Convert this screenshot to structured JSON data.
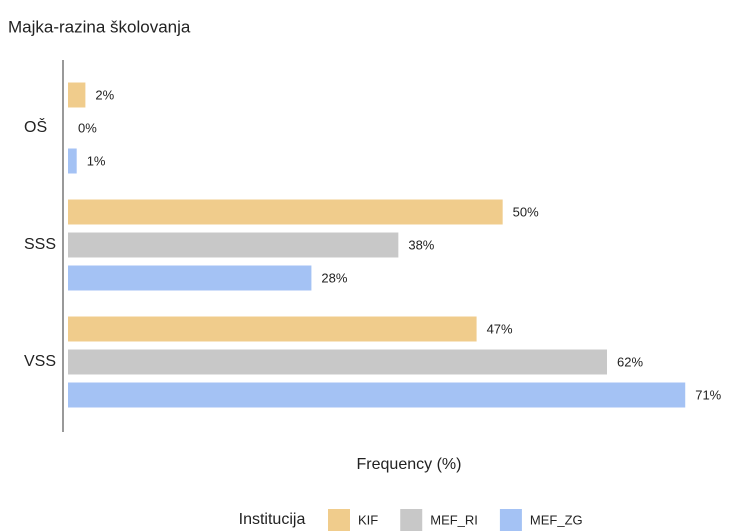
{
  "chart_data": {
    "type": "bar",
    "orientation": "horizontal",
    "title": "Majka-razina školovanja",
    "x_label": "Frequency (%)",
    "legend_title": "Institucija",
    "categories": [
      "OŠ",
      "SSS",
      "VSS"
    ],
    "series": [
      {
        "name": "KIF",
        "color": "#f0cc8c",
        "values": [
          2,
          50,
          47
        ],
        "value_labels": [
          "2%",
          "50%",
          "47%"
        ]
      },
      {
        "name": "MEF_RI",
        "color": "#c8c8c8",
        "values": [
          0,
          38,
          62
        ],
        "value_labels": [
          "0%",
          "38%",
          "62%"
        ]
      },
      {
        "name": "MEF_ZG",
        "color": "#a4c2f4",
        "values": [
          1,
          28,
          71
        ],
        "value_labels": [
          "1%",
          "28%",
          "71%"
        ]
      }
    ],
    "xlim": [
      0,
      75
    ]
  }
}
